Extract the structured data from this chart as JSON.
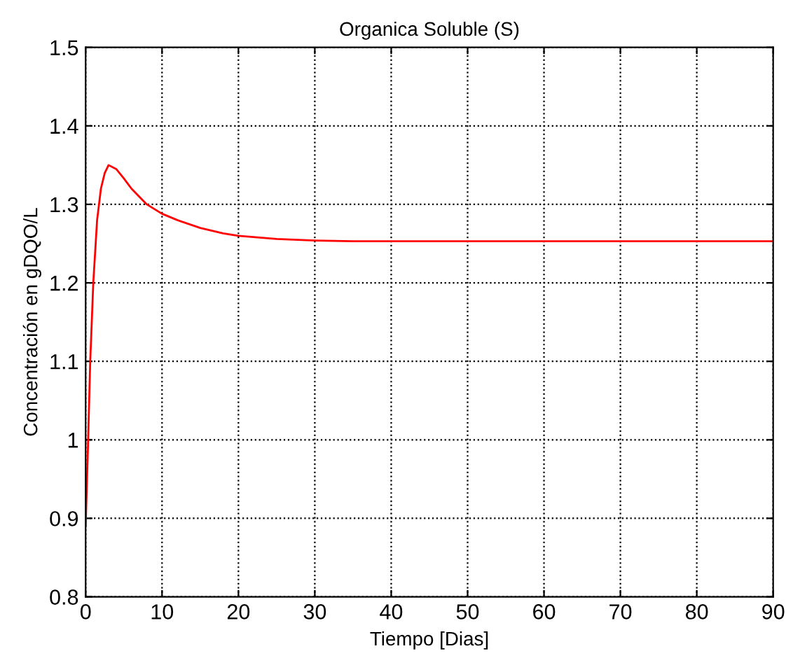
{
  "chart_data": {
    "type": "line",
    "title": "Organica Soluble (S)",
    "xlabel": "Tiempo [Dias]",
    "ylabel": "Concentración en gDQO/L",
    "series": [
      {
        "color": "#ff0000",
        "x": [
          0,
          0.3,
          0.6,
          1,
          1.5,
          2,
          2.5,
          3,
          4,
          5,
          6,
          8,
          10,
          12,
          15,
          18,
          20,
          25,
          30,
          35,
          40,
          50,
          60,
          70,
          80,
          90
        ],
        "values": [
          0.89,
          0.99,
          1.1,
          1.2,
          1.28,
          1.32,
          1.34,
          1.35,
          1.345,
          1.333,
          1.32,
          1.3,
          1.288,
          1.28,
          1.27,
          1.263,
          1.26,
          1.256,
          1.254,
          1.253,
          1.253,
          1.253,
          1.253,
          1.253,
          1.253,
          1.253
        ]
      }
    ],
    "xlim": [
      0,
      90
    ],
    "ylim": [
      0.8,
      1.5
    ],
    "xticks": [
      0,
      10,
      20,
      30,
      40,
      50,
      60,
      70,
      80,
      90
    ],
    "yticks": [
      0.8,
      0.9,
      1,
      1.1,
      1.2,
      1.3,
      1.4,
      1.5
    ],
    "grid": true,
    "line_style": "solid",
    "marker": "none"
  }
}
